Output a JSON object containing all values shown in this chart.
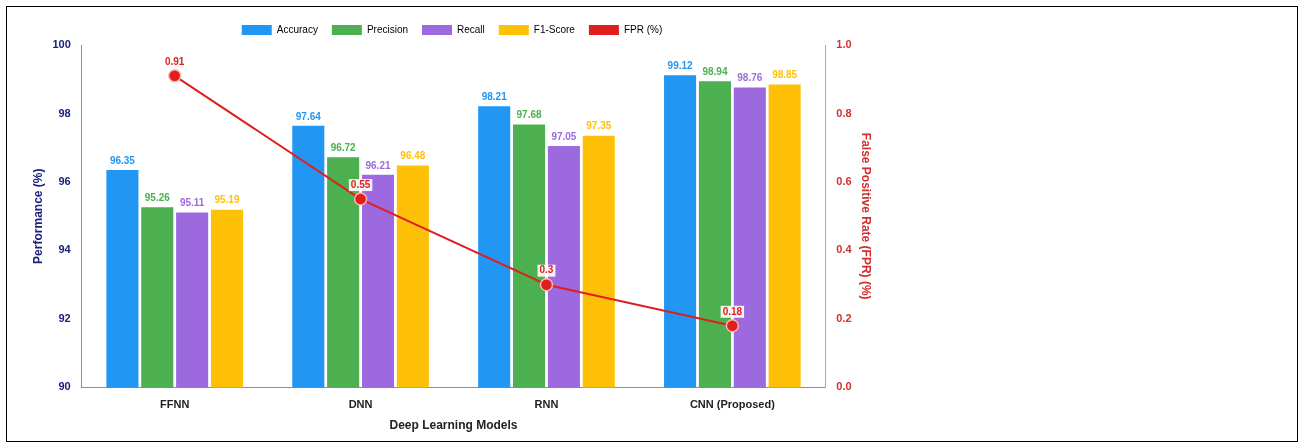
{
  "chart_data": {
    "type": "bar",
    "xlabel": "Deep Learning Models",
    "ylabel": "Performance (%)",
    "y2label": "False Positive Rate (FPR) (%)",
    "categories": [
      "FFNN",
      "DNN",
      "RNN",
      "CNN (Proposed)"
    ],
    "series": [
      {
        "name": "Accuracy",
        "color": "#2196f3",
        "values": [
          96.35,
          97.64,
          98.21,
          99.12
        ]
      },
      {
        "name": "Precision",
        "color": "#4caf50",
        "values": [
          95.26,
          96.72,
          97.68,
          98.94
        ]
      },
      {
        "name": "Recall",
        "color": "#9c6ade",
        "values": [
          95.11,
          96.21,
          97.05,
          98.76
        ]
      },
      {
        "name": "F1-Score",
        "color": "#ffc107",
        "values": [
          95.19,
          96.48,
          97.35,
          98.85
        ]
      },
      {
        "name": "FPR (%)",
        "type": "line",
        "axis": "y2",
        "color": "#e01e1e",
        "values": [
          0.91,
          0.55,
          0.3,
          0.18
        ]
      }
    ],
    "ylim": [
      90,
      100
    ],
    "yticks": [
      90,
      92,
      94,
      96,
      98,
      100
    ],
    "y2lim": [
      0,
      1
    ],
    "y2ticks": [
      {
        "value": 0,
        "label": "0.0"
      },
      {
        "value": 0.2,
        "label": "0.2"
      },
      {
        "value": 0.4,
        "label": "0.4"
      },
      {
        "value": 0.6,
        "label": "0.6"
      },
      {
        "value": 0.8,
        "label": "0.8"
      },
      {
        "value": 1,
        "label": "1.0"
      }
    ],
    "legend": "top",
    "marker": "circle",
    "data_labels": true,
    "grid": false
  }
}
